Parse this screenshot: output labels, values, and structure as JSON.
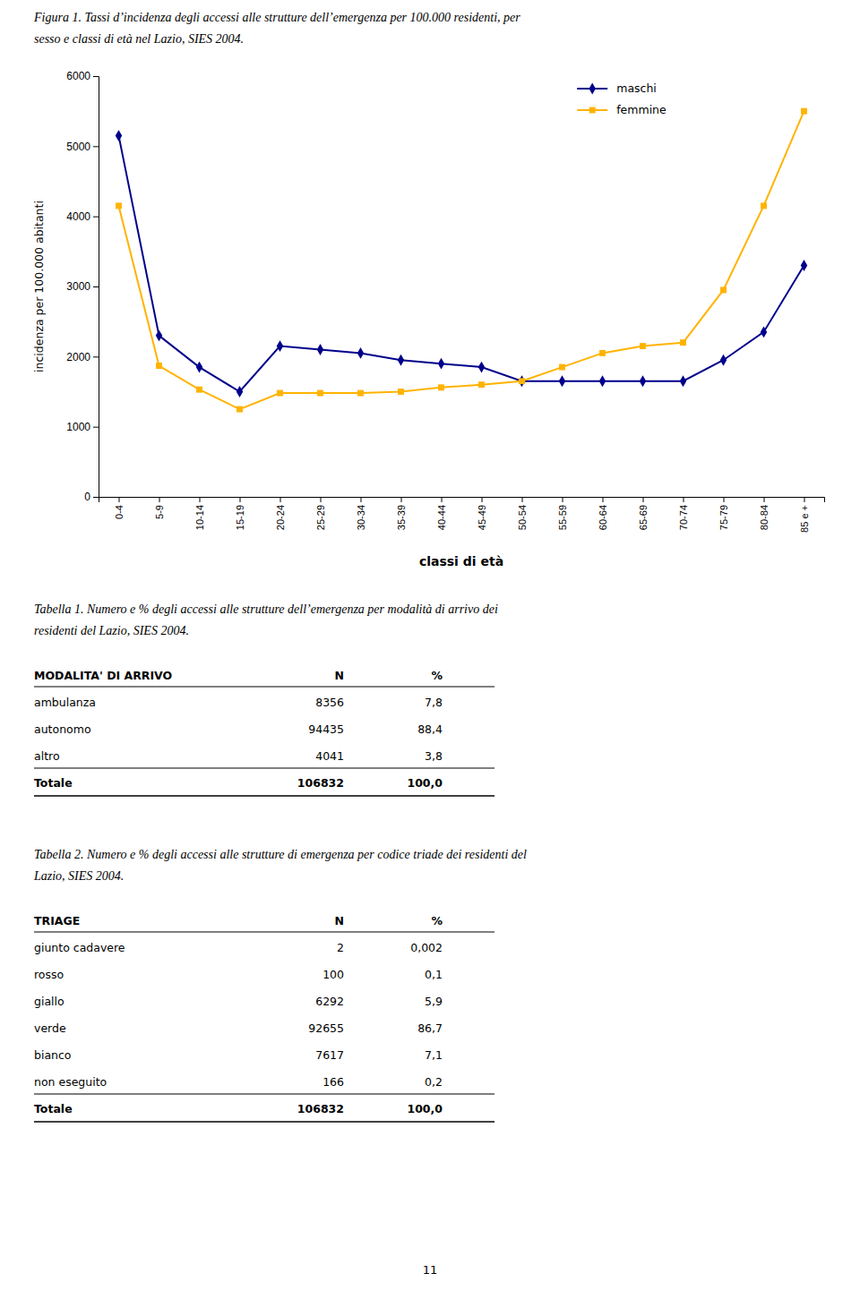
{
  "figure_caption": [
    "Figura 1. Tassi d’incidenza degli accessi alle strutture dell’emergenza per 100.000 residenti, per",
    "sesso e classi di età nel Lazio, SIES 2004."
  ],
  "chart_data": {
    "type": "line",
    "xlabel": "classi di età",
    "ylabel": "incidenza per 100.000 abitanti",
    "categories": [
      "0-4",
      "5-9",
      "10-14",
      "15-19",
      "20-24",
      "25-29",
      "30-34",
      "35-39",
      "40-44",
      "45-49",
      "50-54",
      "55-59",
      "60-64",
      "65-69",
      "70-74",
      "75-79",
      "80-84",
      "85 e +"
    ],
    "series": [
      {
        "name": "maschi",
        "color": "#00008B",
        "marker": "diamond",
        "values": [
          5150,
          2300,
          1850,
          1500,
          2150,
          2100,
          2050,
          1950,
          1900,
          1850,
          1650,
          1650,
          1650,
          1650,
          1650,
          1950,
          2350,
          3300
        ]
      },
      {
        "name": "femmine",
        "color": "#FFB300",
        "marker": "square",
        "values": [
          4150,
          1870,
          1530,
          1250,
          1480,
          1480,
          1480,
          1500,
          1560,
          1600,
          1650,
          1850,
          2050,
          2150,
          2200,
          2950,
          4150,
          5500
        ]
      }
    ],
    "ylim": [
      0,
      6000
    ],
    "yticks": [
      0,
      1000,
      2000,
      3000,
      4000,
      5000,
      6000
    ],
    "grid": false,
    "legend": "upper right"
  },
  "tables": [
    {
      "caption": [
        "Tabella 1. Numero e % degli accessi alle strutture dell’emergenza per modalità di arrivo dei",
        "residenti del Lazio, SIES 2004."
      ],
      "header": [
        "MODALITA' DI ARRIVO",
        "N",
        "%"
      ],
      "rows": [
        [
          "ambulanza",
          "8356",
          "7,8"
        ],
        [
          "autonomo",
          "94435",
          "88,4"
        ],
        [
          "altro",
          "4041",
          "3,8"
        ]
      ],
      "total": [
        "Totale",
        "106832",
        "100,0"
      ]
    },
    {
      "caption": [
        "Tabella 2. Numero e % degli accessi alle strutture di emergenza per codice triade dei residenti del",
        "Lazio, SIES 2004."
      ],
      "header": [
        "TRIAGE",
        "N",
        "%"
      ],
      "rows": [
        [
          "giunto cadavere",
          "2",
          "0,002"
        ],
        [
          "rosso",
          "100",
          "0,1"
        ],
        [
          "giallo",
          "6292",
          "5,9"
        ],
        [
          "verde",
          "92655",
          "86,7"
        ],
        [
          "bianco",
          "7617",
          "7,1"
        ],
        [
          "non eseguito",
          "166",
          "0,2"
        ]
      ],
      "total": [
        "Totale",
        "106832",
        "100,0"
      ]
    }
  ],
  "page_number": "11"
}
